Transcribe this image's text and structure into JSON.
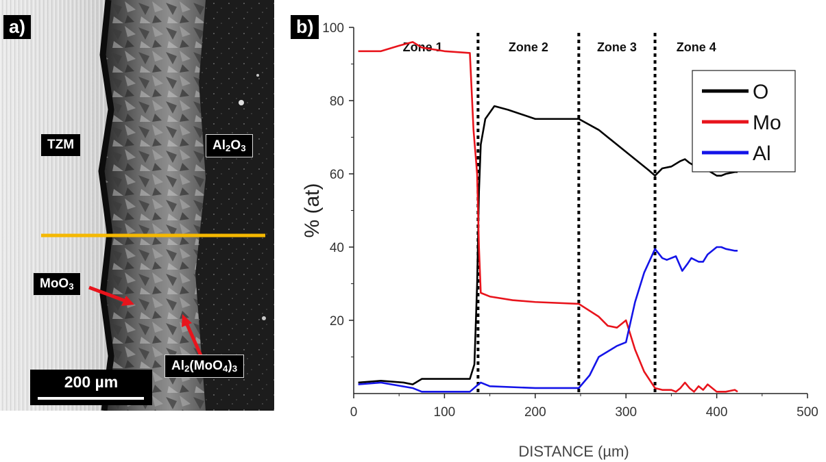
{
  "panel_a": {
    "badge": "a)",
    "labels": {
      "tzm": "TZM",
      "al2o3": "Al2O3",
      "moo3": "MoO3",
      "al2moo43": "Al2(MoO4)3"
    },
    "scale_bar": "200 µm",
    "colors": {
      "line_scan": "#f5b800",
      "arrow": "#e8141c"
    }
  },
  "chart_data": {
    "type": "line",
    "badge": "b)",
    "xlabel": "DISTANCE (µm)",
    "ylabel": "% (at)",
    "xlim": [
      0,
      500
    ],
    "ylim": [
      0,
      100
    ],
    "xticks": [
      0,
      100,
      200,
      300,
      400,
      500
    ],
    "yticks": [
      20,
      40,
      60,
      80,
      100
    ],
    "grid": false,
    "legend_position": "top-right",
    "zone_boundaries": [
      137,
      248,
      332
    ],
    "zones": [
      "Zone 1",
      "Zone 2",
      "Zone 3",
      "Zone 4"
    ],
    "series": [
      {
        "name": "O",
        "color": "#000000",
        "x": [
          5,
          30,
          55,
          65,
          75,
          100,
          128,
          133,
          136,
          138,
          140,
          145,
          155,
          170,
          200,
          225,
          248,
          270,
          300,
          325,
          332,
          340,
          350,
          360,
          365,
          370,
          380,
          390,
          400,
          405,
          410,
          420,
          423
        ],
        "y": [
          3,
          3.5,
          3,
          2.5,
          4,
          4,
          4,
          8,
          30,
          55,
          68,
          75,
          78.5,
          77.5,
          75,
          75,
          75,
          72,
          66,
          61,
          59.5,
          61.5,
          62,
          63.5,
          64,
          63,
          61.5,
          61,
          59.5,
          59.5,
          60,
          60.5,
          60.5
        ]
      },
      {
        "name": "Mo",
        "color": "#e8141c",
        "x": [
          5,
          30,
          50,
          65,
          75,
          100,
          128,
          132,
          136,
          138,
          140,
          150,
          175,
          200,
          248,
          270,
          280,
          290,
          300,
          310,
          320,
          332,
          340,
          350,
          355,
          360,
          365,
          370,
          375,
          380,
          385,
          390,
          400,
          410,
          420,
          423
        ],
        "y": [
          93.5,
          93.5,
          95,
          96,
          94.5,
          93.5,
          93,
          72,
          60,
          40,
          27.5,
          26.5,
          25.5,
          25,
          24.5,
          21,
          18.5,
          18,
          20,
          12,
          6,
          1.5,
          1,
          1,
          0.5,
          1.5,
          3,
          1.5,
          0.5,
          2,
          1,
          2.5,
          0.5,
          0.5,
          1,
          0.5
        ]
      },
      {
        "name": "Al",
        "color": "#1414e8",
        "x": [
          5,
          30,
          65,
          75,
          100,
          128,
          135,
          140,
          150,
          200,
          248,
          260,
          270,
          280,
          290,
          300,
          310,
          320,
          332,
          340,
          345,
          355,
          362,
          368,
          372,
          380,
          385,
          390,
          400,
          405,
          410,
          420,
          423
        ],
        "y": [
          2.5,
          3,
          1.5,
          0.5,
          0.5,
          0.5,
          2,
          3,
          2,
          1.5,
          1.5,
          5,
          10,
          11.5,
          13,
          14,
          25,
          33,
          39.5,
          37,
          36.5,
          37.5,
          33.5,
          35.5,
          37,
          36,
          36,
          38,
          40,
          40,
          39.5,
          39,
          39
        ]
      }
    ]
  }
}
